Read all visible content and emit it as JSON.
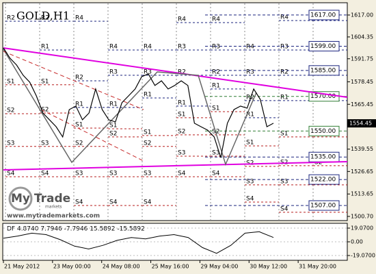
{
  "chart_data": {
    "type": "line",
    "title": "GOLD,H1",
    "color": "#000000",
    "values": [
      1598.0,
      1592.1,
      1588.1,
      1582.2,
      1578.2,
      1570.3,
      1560.4,
      1556.5,
      1552.5,
      1546.6,
      1562.4,
      1564.4,
      1556.5,
      1560.4,
      1574.3,
      1562.4,
      1556.5,
      1555.3,
      1566.4,
      1570.3,
      1574.3,
      1581.4,
      1583.0,
      1576.3,
      1579.0,
      1574.3,
      1576.3,
      1579.0,
      1576.3,
      1554.5,
      1552.5,
      1550.5,
      1546.6,
      1534.7,
      1554.5,
      1562.4,
      1564.4,
      1563.2,
      1574.3,
      1568.3,
      1552.5,
      1554.5
    ],
    "ylim": [
      1498.3,
      1623.7
    ],
    "yticks": [
      {
        "value": 1617,
        "label": "1617.00"
      },
      1604.35,
      1591.75,
      1578.45,
      1565.45,
      1539.55,
      1526.65,
      1513.65,
      {
        "value": 1500.7,
        "label": "1500.70"
      }
    ],
    "x_labels": [
      "21 May 2012",
      "23 May 00:00",
      "24 May 08:00",
      "25 May 16:00",
      "29 May 04:00",
      "30 May 12:00",
      "31 May 20:00"
    ],
    "current_price": 1554.45,
    "levels": [
      {
        "value": 1617,
        "label": "1617.00",
        "color": "#1a237e"
      },
      {
        "value": 1599,
        "label": "1599.00",
        "color": "#1a237e"
      },
      {
        "value": 1585,
        "label": "1585.00",
        "color": "#1a237e"
      },
      {
        "value": 1570,
        "label": "1570.00",
        "color": "#2e7d32"
      },
      {
        "value": 1550,
        "label": "1550.00",
        "color": "#2e7d32"
      },
      {
        "value": 1535,
        "label": "1535.00",
        "color": "#1a237e"
      },
      {
        "value": 1522,
        "label": "1522.00",
        "color": "#1a237e"
      },
      {
        "value": 1507,
        "label": "1507.00",
        "color": "#1a237e"
      }
    ],
    "r_color": "#1a237e",
    "s_color": "#b71c1c",
    "pivots": [
      [
        {
          "name": "R2",
          "value": 1613.4
        },
        {
          "name": "S1",
          "value": 1576.7
        },
        {
          "name": "S2",
          "value": 1560.0
        },
        {
          "name": "S3",
          "value": 1541.1
        },
        {
          "name": "S4",
          "value": 1523.6
        }
      ],
      [
        {
          "name": "R2",
          "value": 1613.4
        },
        {
          "name": "R1",
          "value": 1596.8
        },
        {
          "name": "S1",
          "value": 1576.7
        },
        {
          "name": "S2",
          "value": 1560.4
        },
        {
          "name": "S3",
          "value": 1541.1
        },
        {
          "name": "S4",
          "value": 1523.6
        }
      ],
      [
        {
          "name": "R4",
          "value": 1613.4
        },
        {
          "name": "R2",
          "value": 1579.0
        },
        {
          "name": "R1",
          "value": 1563.6
        },
        {
          "name": "S1",
          "value": 1551.7
        },
        {
          "name": "S2",
          "value": 1541.1
        },
        {
          "name": "S3",
          "value": 1523.6
        },
        {
          "name": "S4",
          "value": 1507.0
        }
      ],
      [
        {
          "name": "R4",
          "value": 1596.8
        },
        {
          "name": "R3",
          "value": 1582.2
        },
        {
          "name": "R1",
          "value": 1563.6
        },
        {
          "name": "S1",
          "value": 1551.3
        },
        {
          "name": "S2",
          "value": 1546.6
        },
        {
          "name": "S3",
          "value": 1523.6
        },
        {
          "name": "S4",
          "value": 1507.0
        }
      ],
      [
        {
          "name": "R4",
          "value": 1596.8
        },
        {
          "name": "R3",
          "value": 1582.2
        },
        {
          "name": "R1",
          "value": 1569.1
        },
        {
          "name": "S1",
          "value": 1547.4
        },
        {
          "name": "S2",
          "value": 1541.1
        },
        {
          "name": "S3",
          "value": 1523.6
        },
        {
          "name": "S4",
          "value": 1507.0
        }
      ],
      [
        {
          "name": "R4",
          "value": 1612.6
        },
        {
          "name": "R3",
          "value": 1596.8
        },
        {
          "name": "R2",
          "value": 1582.2
        },
        {
          "name": "R1",
          "value": 1564.4
        },
        {
          "name": "S1",
          "value": 1557.7
        },
        {
          "name": "S2",
          "value": 1547.8
        },
        {
          "name": "S3",
          "value": 1535.5
        },
        {
          "name": "S4",
          "value": 1523.6
        }
      ],
      [
        {
          "name": "R4",
          "value": 1612.6
        },
        {
          "name": "R3",
          "value": 1596.8
        },
        {
          "name": "R2",
          "value": 1582.2
        },
        {
          "name": "R1",
          "value": 1574.3
        },
        {
          "name": "S1",
          "value": 1561.2
        },
        {
          "name": "S2",
          "value": 1547.8
        },
        {
          "name": "S3",
          "value": 1535.5
        },
        {
          "name": "S4",
          "value": 1523.6
        }
      ],
      [
        {
          "name": "R4",
          "value": 1596.8
        },
        {
          "name": "R3",
          "value": 1582.2
        },
        {
          "name": "R2",
          "value": 1567.6
        },
        {
          "name": "R1",
          "value": 1557.7
        },
        {
          "name": "S1",
          "value": 1541.4
        },
        {
          "name": "S2",
          "value": 1529.6
        },
        {
          "name": "S3",
          "value": 1518.9
        },
        {
          "name": "S4",
          "value": 1509.0
        }
      ],
      [
        {
          "name": "R4",
          "value": 1613.8
        },
        {
          "name": "R3",
          "value": 1596.8
        },
        {
          "name": "R2",
          "value": 1582.2
        },
        {
          "name": "R1",
          "value": 1567.6
        },
        {
          "name": "S1",
          "value": 1546.6
        },
        {
          "name": "S2",
          "value": 1530.0
        },
        {
          "name": "S3",
          "value": 1518.9
        },
        {
          "name": "S4",
          "value": 1503.1
        }
      ],
      [
        {
          "name": "R4",
          "value": 1613.8
        },
        {
          "name": "R3",
          "value": 1596.8
        },
        {
          "name": "R2",
          "value": 1582.2
        },
        {
          "name": "R1",
          "value": 1567.6
        },
        {
          "name": "S1",
          "value": 1546.6
        },
        {
          "name": "S2",
          "value": 1530.0
        },
        {
          "name": "S3",
          "value": 1518.9
        },
        {
          "name": "S4",
          "value": 1503.1
        }
      ]
    ],
    "indicator": {
      "label": "DF 4.8740 7.7946 -7.7946 15.5892 -15.5892",
      "color": "#000000",
      "values": [
        5,
        8,
        12,
        10,
        3,
        -6,
        -10,
        -5,
        2,
        6,
        4,
        8,
        10,
        6,
        -8,
        -16,
        -5,
        12,
        14,
        6
      ],
      "ylim": [
        -25.74,
        24.79
      ],
      "yticks": [
        {
          "value": 19.07,
          "label": "19.0700"
        },
        {
          "value": 0,
          "label": "0.00"
        },
        {
          "value": -19.07,
          "label": "-19.0700"
        }
      ]
    },
    "watermark": {
      "brand": "My Trade",
      "sub": "markets",
      "url": "www.mytrademarkets.com"
    }
  }
}
